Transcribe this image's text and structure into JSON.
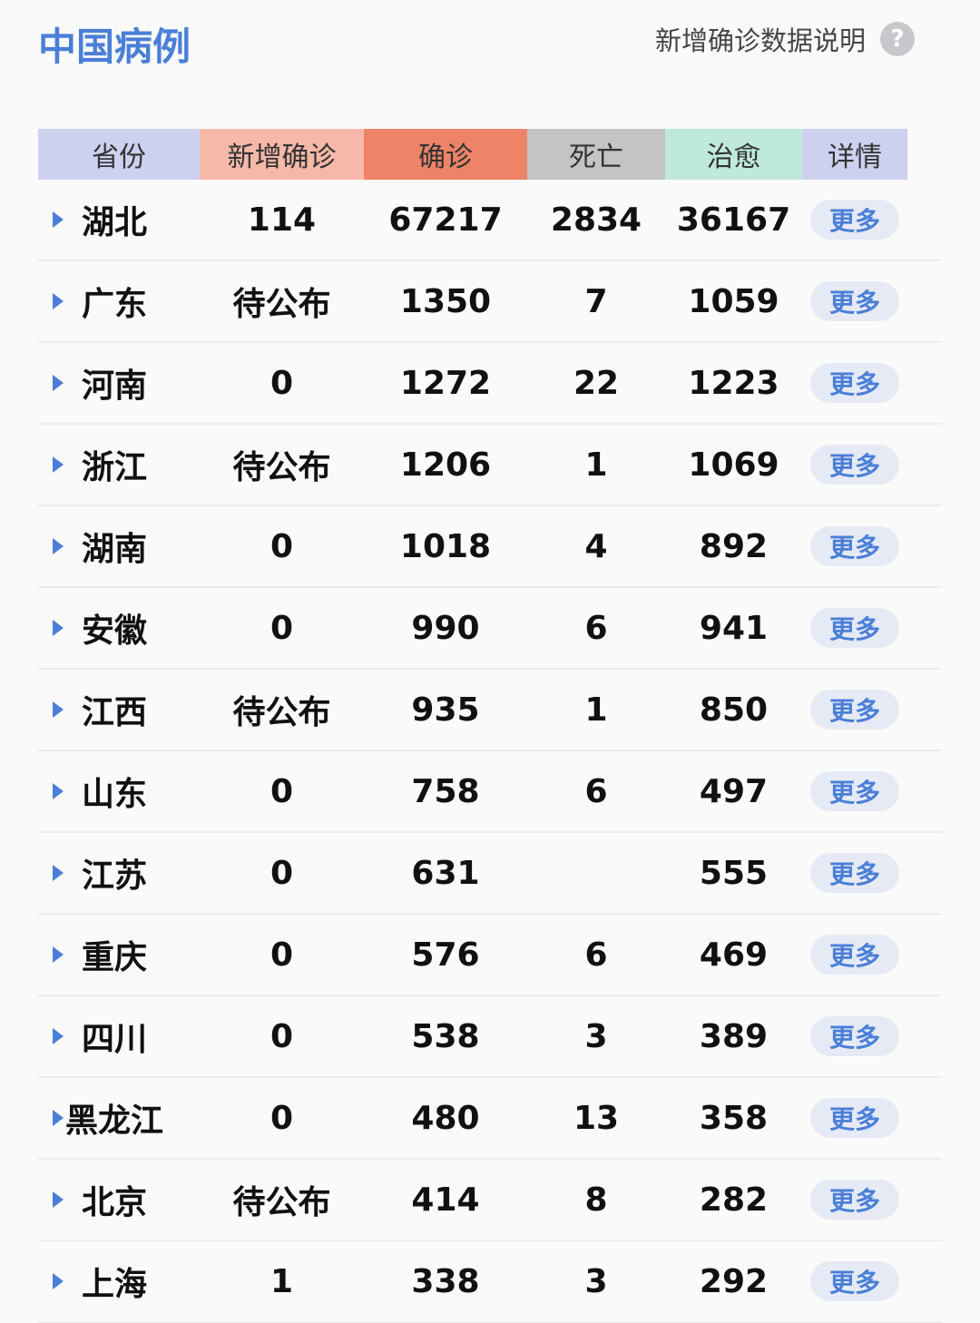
{
  "title": "中国病例",
  "note": {
    "label": "新增确诊数据说明",
    "icon": "question-circle-icon"
  },
  "colors": {
    "province": "#cdd0ef",
    "new": "#f6b8a8",
    "confirmed": "#ee8368",
    "death": "#c4c4c4",
    "cured": "#bfeadb",
    "detail": "#cdd0ef",
    "accent": "#4a7fd8"
  },
  "headers": [
    "省份",
    "新增确诊",
    "确诊",
    "死亡",
    "治愈",
    "详情"
  ],
  "more_label": "更多",
  "rows": [
    {
      "province": "湖北",
      "new": "114",
      "confirmed": "67217",
      "death": "2834",
      "cured": "36167"
    },
    {
      "province": "广东",
      "new": "待公布",
      "confirmed": "1350",
      "death": "7",
      "cured": "1059"
    },
    {
      "province": "河南",
      "new": "0",
      "confirmed": "1272",
      "death": "22",
      "cured": "1223"
    },
    {
      "province": "浙江",
      "new": "待公布",
      "confirmed": "1206",
      "death": "1",
      "cured": "1069"
    },
    {
      "province": "湖南",
      "new": "0",
      "confirmed": "1018",
      "death": "4",
      "cured": "892"
    },
    {
      "province": "安徽",
      "new": "0",
      "confirmed": "990",
      "death": "6",
      "cured": "941"
    },
    {
      "province": "江西",
      "new": "待公布",
      "confirmed": "935",
      "death": "1",
      "cured": "850"
    },
    {
      "province": "山东",
      "new": "0",
      "confirmed": "758",
      "death": "6",
      "cured": "497"
    },
    {
      "province": "江苏",
      "new": "0",
      "confirmed": "631",
      "death": "",
      "cured": "555"
    },
    {
      "province": "重庆",
      "new": "0",
      "confirmed": "576",
      "death": "6",
      "cured": "469"
    },
    {
      "province": "四川",
      "new": "0",
      "confirmed": "538",
      "death": "3",
      "cured": "389"
    },
    {
      "province": "黑龙江",
      "new": "0",
      "confirmed": "480",
      "death": "13",
      "cured": "358"
    },
    {
      "province": "北京",
      "new": "待公布",
      "confirmed": "414",
      "death": "8",
      "cured": "282"
    },
    {
      "province": "上海",
      "new": "1",
      "confirmed": "338",
      "death": "3",
      "cured": "292"
    }
  ]
}
